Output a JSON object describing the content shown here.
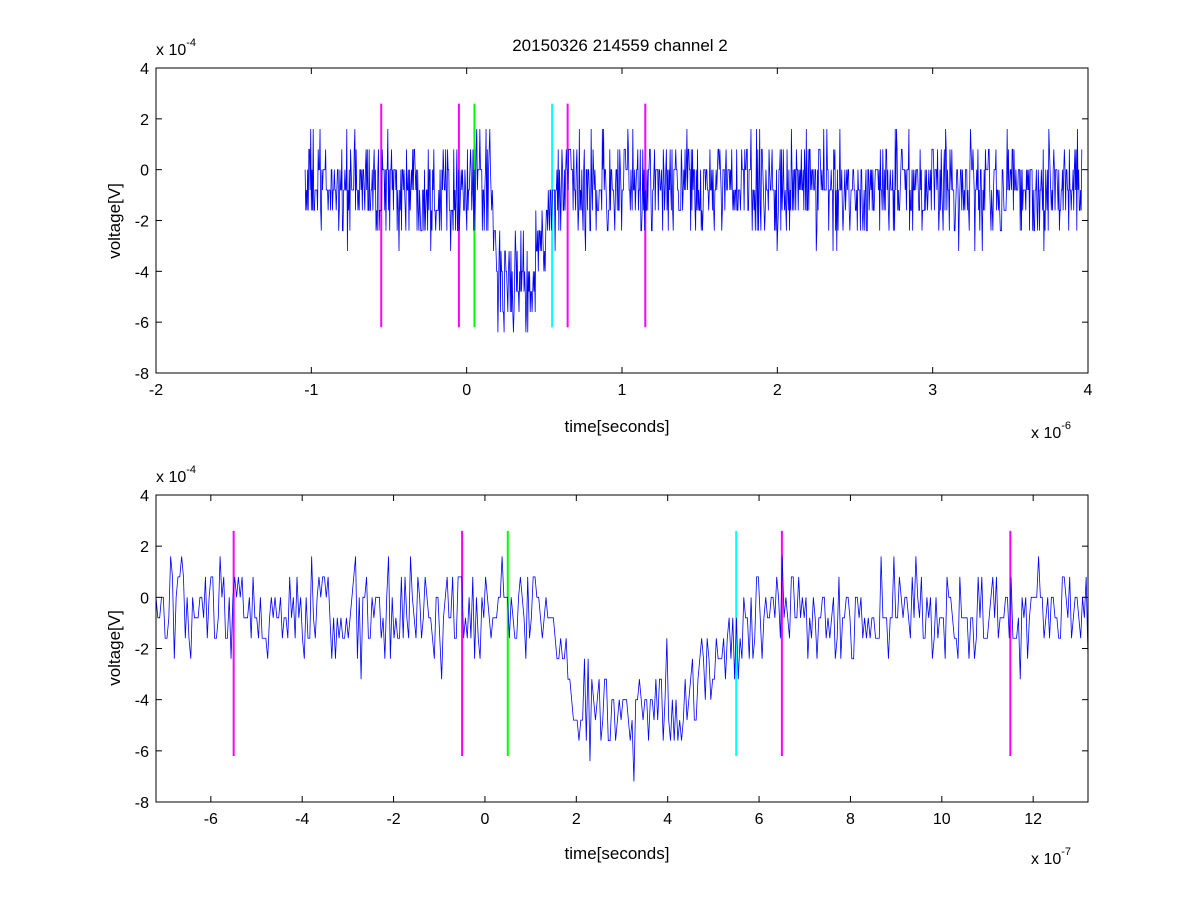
{
  "title": "20150326 214559 channel 2",
  "chart_data": [
    {
      "type": "line",
      "xlabel": "time[seconds]",
      "ylabel": "voltage[V]",
      "x_multiplier": {
        "base": "x 10",
        "exponent": "-6"
      },
      "y_multiplier": {
        "base": "x 10",
        "exponent": "-4"
      },
      "xlim": [
        -2,
        4
      ],
      "ylim": [
        -8,
        4
      ],
      "x_ticks": [
        -2,
        -1,
        0,
        1,
        2,
        3,
        4
      ],
      "x_tick_labels": [
        "-2",
        "-1",
        "0",
        "1",
        "2",
        "3",
        "4"
      ],
      "y_ticks": [
        -8,
        -6,
        -4,
        -2,
        0,
        2,
        4
      ],
      "y_tick_labels": [
        "-8",
        "-6",
        "-4",
        "-2",
        "0",
        "2",
        "4"
      ],
      "series": [
        {
          "color": "#0000ff",
          "x_range": [
            -1.04,
            3.96
          ],
          "samples": 1250,
          "baseline": -0.7,
          "quantum": 0.8,
          "noise_amplitude": 1.0,
          "dip": {
            "depth": -4.4,
            "fall_start": 0.15,
            "fall_end": 0.2,
            "rise_start": 0.4,
            "rise_end": 0.6
          }
        }
      ],
      "markers": [
        {
          "x": -0.55,
          "color": "#ff00ff",
          "ymin": -6.2,
          "ymax": 2.6
        },
        {
          "x": -0.05,
          "color": "#ff00ff",
          "ymin": -6.2,
          "ymax": 2.6
        },
        {
          "x": 0.05,
          "color": "#00ff00",
          "ymin": -6.2,
          "ymax": 2.6
        },
        {
          "x": 0.55,
          "color": "#00ffff",
          "ymin": -6.2,
          "ymax": 2.6
        },
        {
          "x": 0.65,
          "color": "#ff00ff",
          "ymin": -6.2,
          "ymax": 2.6
        },
        {
          "x": 1.15,
          "color": "#ff00ff",
          "ymin": -6.2,
          "ymax": 2.6
        }
      ]
    },
    {
      "type": "line",
      "xlabel": "time[seconds]",
      "ylabel": "voltage[V]",
      "x_multiplier": {
        "base": "x 10",
        "exponent": "-7"
      },
      "y_multiplier": {
        "base": "x 10",
        "exponent": "-4"
      },
      "xlim": [
        -7.2,
        13.2
      ],
      "ylim": [
        -8,
        4
      ],
      "x_ticks": [
        -6,
        -4,
        -2,
        0,
        2,
        4,
        6,
        8,
        10,
        12
      ],
      "x_tick_labels": [
        "-6",
        "-4",
        "-2",
        "0",
        "2",
        "4",
        "6",
        "8",
        "10",
        "12"
      ],
      "y_ticks": [
        -8,
        -6,
        -4,
        -2,
        0,
        2,
        4
      ],
      "y_tick_labels": [
        "-8",
        "-6",
        "-4",
        "-2",
        "0",
        "2",
        "4"
      ],
      "series": [
        {
          "color": "#0000ff",
          "x_range": [
            -7.2,
            13.2
          ],
          "samples": 510,
          "baseline": -0.7,
          "quantum": 0.8,
          "noise_amplitude": 1.0,
          "dip": {
            "depth": -4.4,
            "fall_start": 1.5,
            "fall_end": 2.0,
            "rise_start": 4.0,
            "rise_end": 6.0
          }
        }
      ],
      "markers": [
        {
          "x": -5.5,
          "color": "#ff00ff",
          "ymin": -6.2,
          "ymax": 2.6
        },
        {
          "x": -0.5,
          "color": "#ff00ff",
          "ymin": -6.2,
          "ymax": 2.6
        },
        {
          "x": 0.5,
          "color": "#00ff00",
          "ymin": -6.2,
          "ymax": 2.6
        },
        {
          "x": 5.5,
          "color": "#00ffff",
          "ymin": -6.2,
          "ymax": 2.6
        },
        {
          "x": 6.5,
          "color": "#ff00ff",
          "ymin": -6.2,
          "ymax": 2.6
        },
        {
          "x": 11.5,
          "color": "#ff00ff",
          "ymin": -6.2,
          "ymax": 2.6
        }
      ]
    }
  ]
}
